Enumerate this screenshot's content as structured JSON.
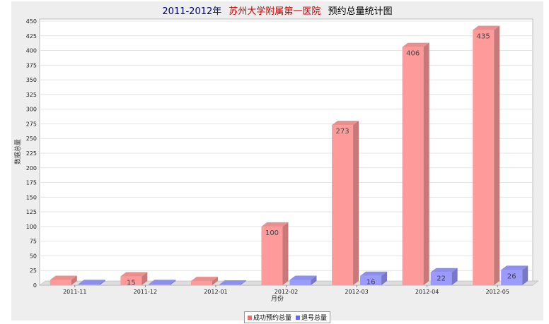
{
  "chart_data": {
    "type": "bar",
    "title": {
      "part1": "2011-2012年",
      "part2": "苏州大学附属第一医院",
      "part3": "预约总量统计图"
    },
    "xlabel": "月份",
    "ylabel": "数据总量",
    "ylim": [
      0,
      450
    ],
    "ytick_step": 25,
    "grid": true,
    "categories": [
      "2011-11",
      "2011-12",
      "2012-01",
      "2012-02",
      "2012-03",
      "2012-04",
      "2012-05"
    ],
    "series": [
      {
        "name": "成功预约总量",
        "color": "#ff9a9a",
        "values": [
          9,
          15,
          7,
          100,
          273,
          406,
          435
        ],
        "labels": [
          null,
          "15",
          null,
          "100",
          "273",
          "406",
          "435"
        ]
      },
      {
        "name": "退号总量",
        "color": "#9a9aff",
        "values": [
          2,
          2,
          1,
          9,
          16,
          22,
          26
        ],
        "labels": [
          null,
          null,
          null,
          null,
          "16",
          "22",
          "26"
        ]
      }
    ],
    "legend_position": "bottom-center",
    "title_color_highlight": "#cc0000"
  }
}
